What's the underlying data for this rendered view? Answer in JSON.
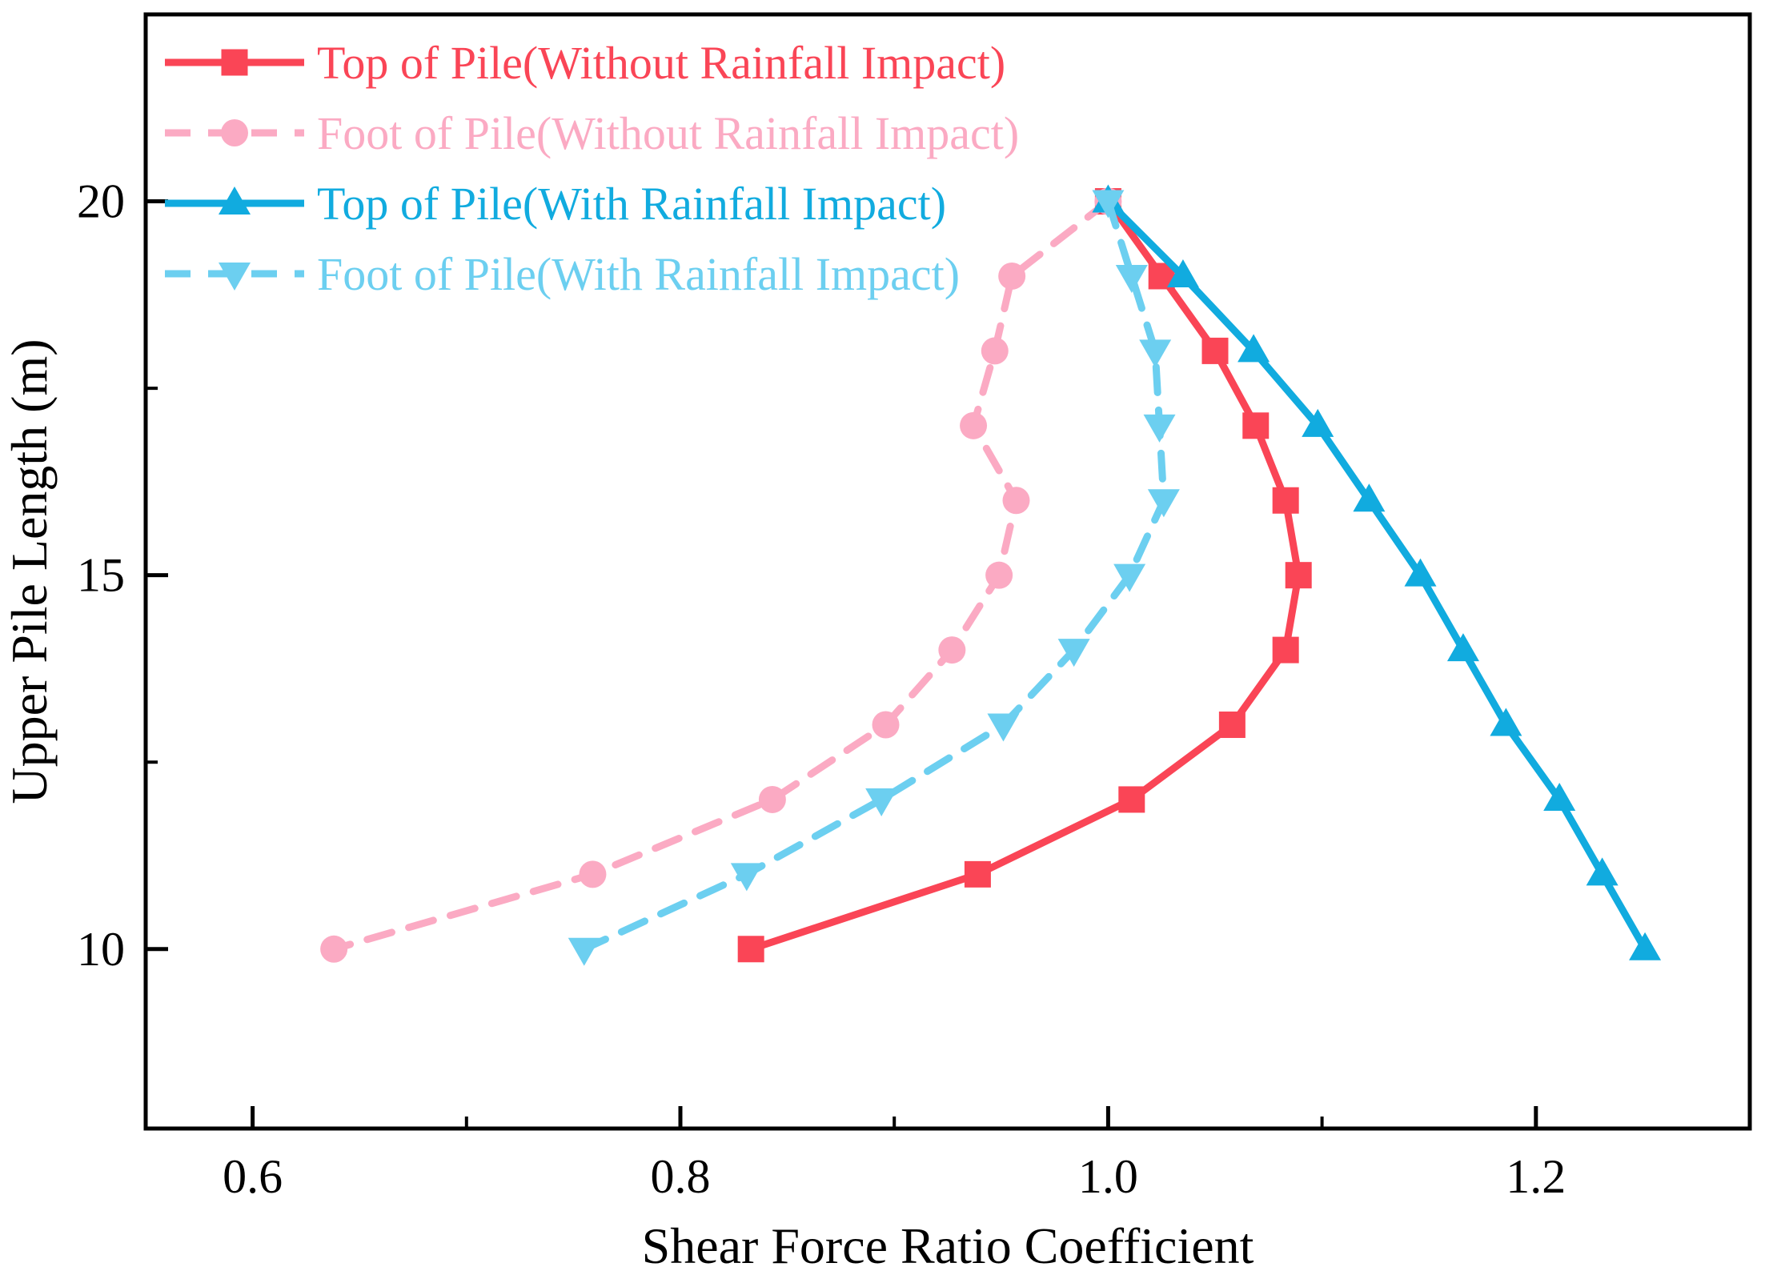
{
  "chart_data": {
    "type": "line",
    "title": "",
    "xlabel": "Shear Force Ratio Coefficient",
    "ylabel": "Upper Pile Length (m)",
    "xlim": [
      0.55,
      1.3
    ],
    "ylim": [
      7.6,
      22.5
    ],
    "x_major_ticks": [
      0.6,
      0.8,
      1.0,
      1.2
    ],
    "x_minor_ticks": [
      0.7,
      0.9,
      1.1
    ],
    "y_major_ticks": [
      10,
      15,
      20
    ],
    "y_minor_ticks": [
      12.5,
      17.5
    ],
    "grid": false,
    "legend_position": "top-left",
    "frame_color": "#000000",
    "text_color": "#000000",
    "lengths_m": [
      20,
      19,
      18,
      17,
      16,
      15,
      14,
      13,
      12,
      11,
      10
    ],
    "series": [
      {
        "id": "top-of-pile-without-rainfall-impact",
        "name": "Top of Pile(Without Rainfall Impact)",
        "color": "#FA4556",
        "marker": "square",
        "line": "solid",
        "x": [
          1.0,
          1.025,
          1.05,
          1.069,
          1.083,
          1.089,
          1.083,
          1.058,
          1.011,
          0.939,
          0.833
        ]
      },
      {
        "id": "foot-of-pile-without-rainfall-impact",
        "name": "Foot of Pile(Without Rainfall Impact)",
        "color": "#FBAAC3",
        "marker": "circle",
        "line": "dashed",
        "x": [
          1.0,
          0.955,
          0.947,
          0.937,
          0.957,
          0.949,
          0.927,
          0.896,
          0.843,
          0.759,
          0.638
        ]
      },
      {
        "id": "top-of-pile-with-rainfall-impact",
        "name": "Top of Pile(With Rainfall Impact)",
        "color": "#11ABDF",
        "marker": "triangle-up",
        "line": "solid",
        "x": [
          1.0,
          1.035,
          1.068,
          1.098,
          1.122,
          1.146,
          1.166,
          1.186,
          1.211,
          1.231,
          1.251
        ]
      },
      {
        "id": "foot-of-pile-with-rainfall-impact",
        "name": "Foot of Pile(With Rainfall Impact)",
        "color": "#6CCFF0",
        "marker": "triangle-down",
        "line": "dashed",
        "x": [
          1.0,
          1.011,
          1.022,
          1.024,
          1.026,
          1.01,
          0.984,
          0.951,
          0.894,
          0.831,
          0.755
        ]
      }
    ]
  }
}
